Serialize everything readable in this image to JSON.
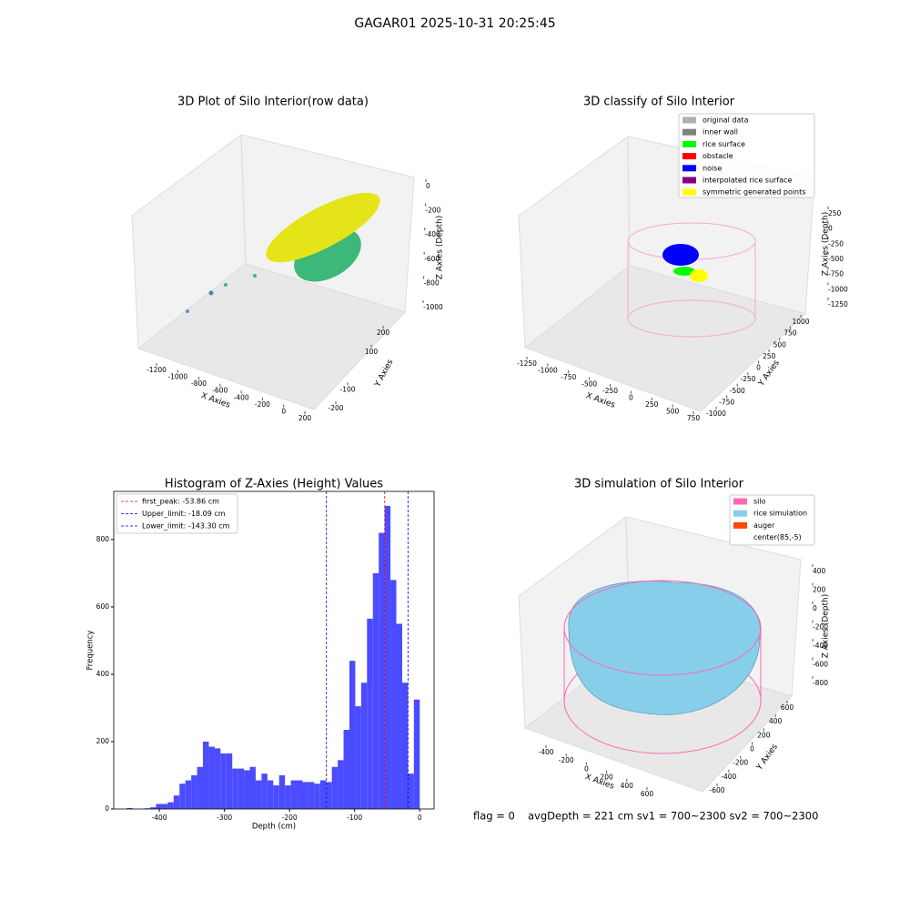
{
  "title": "GAGAR01 2025-10-31 20:25:45",
  "status": {
    "flag": "flag = 0",
    "summary": "avgDepth = 221 cm  sv1 = 700~2300  sv2 = 700~2300"
  },
  "chart_data": [
    {
      "type": "scatter3d",
      "title": "3D Plot of Silo Interior(row data)",
      "xlabel": "X Axies",
      "ylabel": "Y Axies",
      "zlabel": "Z Axies (Depth)",
      "xticks": [
        -1200,
        -1000,
        -800,
        -600,
        -400,
        -200,
        0,
        200
      ],
      "yticks": [
        -200,
        -100,
        100,
        200
      ],
      "zticks": [
        0,
        -200,
        -400,
        -600,
        -800,
        -1000
      ]
    },
    {
      "type": "scatter3d",
      "title": "3D classify of Silo Interior",
      "xlabel": "X Axies",
      "ylabel": "Y Axies",
      "zlabel": "Z Axies (Depth)",
      "xticks": [
        -1250,
        -1000,
        -750,
        -500,
        -250,
        0,
        250,
        500,
        750
      ],
      "yticks": [
        -1000,
        -750,
        -500,
        -250,
        0,
        250,
        500,
        750,
        1000
      ],
      "zticks": [
        250,
        0,
        -250,
        -500,
        -750,
        -1000,
        -1250
      ],
      "series": [
        {
          "name": "original data",
          "color": "#b0b0b0"
        },
        {
          "name": "inner wall",
          "color": "#808080"
        },
        {
          "name": "rice surface",
          "color": "#00ff00"
        },
        {
          "name": "obstacle",
          "color": "#ff0000"
        },
        {
          "name": "noise",
          "color": "#0000ff"
        },
        {
          "name": "interpolated rice surface",
          "color": "#800080"
        },
        {
          "name": "symmetric generated points",
          "color": "#ffff00"
        }
      ]
    },
    {
      "type": "histogram",
      "title": "Histogram of Z-Axies (Height) Values",
      "xlabel": "Depth (cm)",
      "ylabel": "Frequency",
      "color": "#4b4bff",
      "bins": [
        -450,
        -441,
        -432,
        -423,
        -414,
        -405,
        -396,
        -387,
        -378,
        -369,
        -360,
        -351,
        -342,
        -333,
        -324,
        -315,
        -306,
        -297,
        -288,
        -279,
        -270,
        -261,
        -252,
        -243,
        -234,
        -225,
        -216,
        -207,
        -198,
        -189,
        -180,
        -171,
        -162,
        -153,
        -144,
        -135,
        -126,
        -117,
        -108,
        -99,
        -90,
        -81,
        -72,
        -63,
        -54,
        -45,
        -36,
        -27,
        -18,
        -9,
        0
      ],
      "values": [
        3,
        0,
        0,
        2,
        5,
        15,
        15,
        20,
        40,
        75,
        85,
        100,
        125,
        200,
        185,
        180,
        165,
        165,
        120,
        120,
        115,
        125,
        85,
        105,
        85,
        70,
        100,
        70,
        85,
        85,
        80,
        80,
        75,
        85,
        80,
        125,
        145,
        235,
        440,
        305,
        375,
        565,
        700,
        820,
        900,
        680,
        550,
        375,
        105,
        325
      ],
      "xlim": [
        -470,
        22
      ],
      "ylim": [
        0,
        943
      ],
      "xticks": [
        -400,
        -300,
        -200,
        -100,
        0
      ],
      "yticks": [
        0,
        200,
        400,
        600,
        800
      ],
      "lines": [
        {
          "name": "first_peak: -53.86 cm",
          "value": -53.86,
          "color": "#ff0000"
        },
        {
          "name": "Upper_limit: -18.09 cm",
          "value": -18.09,
          "color": "#0000cc"
        },
        {
          "name": "Lower_limit: -143.30 cm",
          "value": -143.3,
          "color": "#0000cc"
        }
      ],
      "legend": "upper left"
    },
    {
      "type": "surface3d",
      "title": "3D simulation of Silo Interior",
      "xlabel": "X Axies",
      "ylabel": "Y Axies",
      "zlabel": "Z Axies (Depth)",
      "xticks": [
        -400,
        -200,
        0,
        200,
        400,
        600
      ],
      "yticks": [
        -600,
        -400,
        -200,
        0,
        200,
        400,
        600
      ],
      "zticks": [
        400,
        200,
        0,
        -200,
        -400,
        -600,
        -800
      ],
      "series": [
        {
          "name": "silo",
          "color": "#ff69b4"
        },
        {
          "name": "rice simulation",
          "color": "#87ceeb"
        },
        {
          "name": "auger",
          "color": "#ff4500"
        },
        {
          "name": "center(85,-5)",
          "color": "#ffffff"
        }
      ]
    }
  ]
}
